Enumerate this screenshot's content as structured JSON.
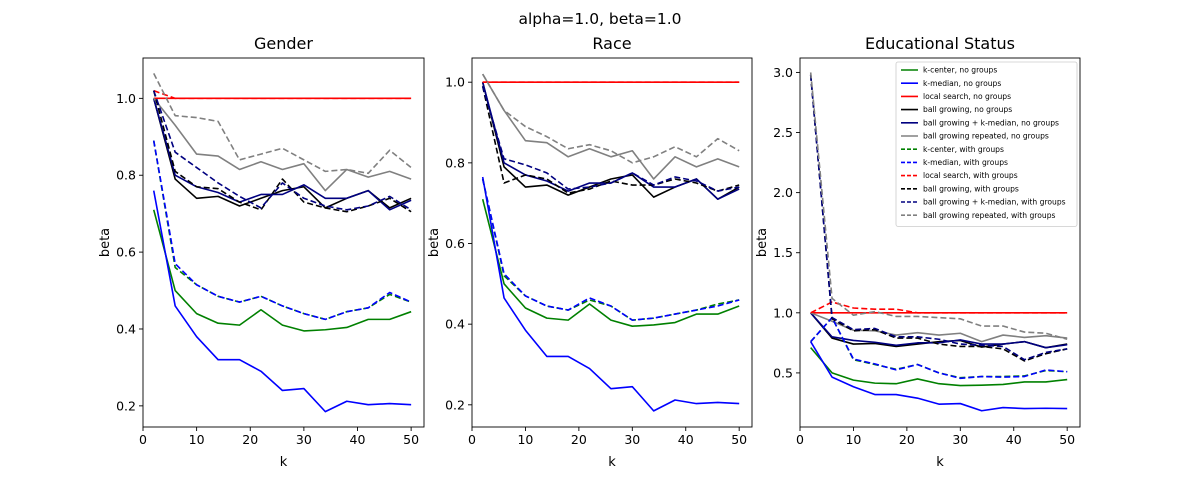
{
  "figure": {
    "suptitle": "alpha=1.0, beta=1.0"
  },
  "legend_entries": [
    "k-center, no groups",
    "k-median, no groups",
    "local search, no groups",
    "ball growing, no groups",
    "ball growing + k-median, no groups",
    "ball growing repeated, no groups",
    "k-center, with groups",
    "k-median, with groups",
    "local search, with groups",
    "ball growing, with groups",
    "ball growing + k-median, with groups",
    "ball growing repeated, with groups"
  ],
  "chart_data": [
    {
      "type": "line",
      "title": "Gender",
      "xlabel": "k",
      "ylabel": "beta",
      "xlim": [
        0,
        52.4
      ],
      "ylim": [
        0.145,
        1.105
      ],
      "xticks": [
        0,
        10,
        20,
        30,
        40,
        50
      ],
      "yticks": [
        0.2,
        0.4,
        0.6,
        0.8,
        1.0
      ],
      "ytick_labels": [
        "0.2",
        "0.4",
        "0.6",
        "0.8",
        "1.0"
      ],
      "x": [
        2,
        6,
        10,
        14,
        18,
        22,
        26,
        30,
        34,
        38,
        42,
        46,
        50
      ],
      "grid": false,
      "series": [
        {
          "name": "k-center, no groups",
          "color": "#008000",
          "dash": "solid",
          "values": [
            0.71,
            0.5,
            0.44,
            0.415,
            0.41,
            0.45,
            0.41,
            0.395,
            0.398,
            0.404,
            0.425,
            0.425,
            0.445
          ]
        },
        {
          "name": "k-median, no groups",
          "color": "#0000ff",
          "dash": "solid",
          "values": [
            0.76,
            0.46,
            0.38,
            0.32,
            0.32,
            0.29,
            0.24,
            0.245,
            0.185,
            0.212,
            0.203,
            0.206,
            0.203
          ]
        },
        {
          "name": "local search, no groups",
          "color": "#ff0000",
          "dash": "solid",
          "values": [
            1.0,
            1.0,
            1.0,
            1.0,
            1.0,
            1.0,
            1.0,
            1.0,
            1.0,
            1.0,
            1.0,
            1.0,
            1.0
          ]
        },
        {
          "name": "ball growing, no groups",
          "color": "#000000",
          "dash": "solid",
          "values": [
            1.0,
            0.79,
            0.74,
            0.745,
            0.72,
            0.74,
            0.76,
            0.77,
            0.715,
            0.74,
            0.76,
            0.715,
            0.74
          ]
        },
        {
          "name": "ball growing + k-median, no groups",
          "color": "#000080",
          "dash": "solid",
          "values": [
            1.0,
            0.8,
            0.77,
            0.755,
            0.73,
            0.75,
            0.75,
            0.775,
            0.74,
            0.74,
            0.76,
            0.71,
            0.735
          ]
        },
        {
          "name": "ball growing repeated, no groups",
          "color": "#808080",
          "dash": "solid",
          "values": [
            1.0,
            0.93,
            0.855,
            0.85,
            0.815,
            0.835,
            0.815,
            0.83,
            0.76,
            0.815,
            0.795,
            0.81,
            0.79
          ]
        },
        {
          "name": "k-center, with groups",
          "color": "#008000",
          "dash": "dashed",
          "values": [
            0.89,
            0.56,
            0.515,
            0.485,
            0.47,
            0.485,
            0.46,
            0.44,
            0.425,
            0.445,
            0.455,
            0.49,
            0.47
          ]
        },
        {
          "name": "k-median, with groups",
          "color": "#0000ff",
          "dash": "dashed",
          "values": [
            0.89,
            0.57,
            0.515,
            0.485,
            0.47,
            0.485,
            0.46,
            0.44,
            0.425,
            0.445,
            0.455,
            0.495,
            0.47
          ]
        },
        {
          "name": "local search, with groups",
          "color": "#ff0000",
          "dash": "dashed",
          "values": [
            1.02,
            1.0,
            1.0,
            1.0,
            1.0,
            1.0,
            1.0,
            1.0,
            1.0,
            1.0,
            1.0,
            1.0,
            1.0
          ]
        },
        {
          "name": "ball growing, with groups",
          "color": "#000000",
          "dash": "dashed",
          "values": [
            1.02,
            0.81,
            0.77,
            0.765,
            0.73,
            0.71,
            0.79,
            0.73,
            0.715,
            0.705,
            0.72,
            0.74,
            0.705
          ]
        },
        {
          "name": "ball growing + k-median, with groups",
          "color": "#000080",
          "dash": "dashed",
          "values": [
            1.02,
            0.86,
            0.82,
            0.78,
            0.745,
            0.715,
            0.78,
            0.74,
            0.72,
            0.71,
            0.72,
            0.745,
            0.71
          ]
        },
        {
          "name": "ball growing repeated, with groups",
          "color": "#808080",
          "dash": "dashed",
          "values": [
            1.065,
            0.955,
            0.95,
            0.94,
            0.84,
            0.855,
            0.87,
            0.84,
            0.81,
            0.815,
            0.805,
            0.865,
            0.82
          ]
        }
      ]
    },
    {
      "type": "line",
      "title": "Race",
      "xlabel": "k",
      "ylabel": "beta",
      "xlim": [
        0,
        52.4
      ],
      "ylim": [
        0.145,
        1.06
      ],
      "xticks": [
        0,
        10,
        20,
        30,
        40,
        50
      ],
      "yticks": [
        0.2,
        0.4,
        0.6,
        0.8,
        1.0
      ],
      "ytick_labels": [
        "0.2",
        "0.4",
        "0.6",
        "0.8",
        "1.0"
      ],
      "x": [
        2,
        6,
        10,
        14,
        18,
        22,
        26,
        30,
        34,
        38,
        42,
        46,
        50
      ],
      "grid": false,
      "series": [
        {
          "name": "k-center, no groups",
          "color": "#008000",
          "dash": "solid",
          "values": [
            0.71,
            0.5,
            0.44,
            0.415,
            0.41,
            0.45,
            0.41,
            0.395,
            0.398,
            0.404,
            0.425,
            0.425,
            0.445
          ]
        },
        {
          "name": "k-median, no groups",
          "color": "#0000ff",
          "dash": "solid",
          "values": [
            0.765,
            0.465,
            0.385,
            0.32,
            0.32,
            0.29,
            0.24,
            0.245,
            0.185,
            0.212,
            0.203,
            0.206,
            0.203
          ]
        },
        {
          "name": "local search, no groups",
          "color": "#ff0000",
          "dash": "solid",
          "values": [
            1.0,
            1.0,
            1.0,
            1.0,
            1.0,
            1.0,
            1.0,
            1.0,
            1.0,
            1.0,
            1.0,
            1.0,
            1.0
          ]
        },
        {
          "name": "ball growing, no groups",
          "color": "#000000",
          "dash": "solid",
          "values": [
            1.0,
            0.79,
            0.74,
            0.745,
            0.72,
            0.74,
            0.76,
            0.77,
            0.715,
            0.74,
            0.76,
            0.71,
            0.74
          ]
        },
        {
          "name": "ball growing + k-median, no groups",
          "color": "#000080",
          "dash": "solid",
          "values": [
            1.0,
            0.8,
            0.77,
            0.755,
            0.73,
            0.75,
            0.75,
            0.775,
            0.74,
            0.74,
            0.76,
            0.71,
            0.735
          ]
        },
        {
          "name": "ball growing repeated, no groups",
          "color": "#808080",
          "dash": "solid",
          "values": [
            1.02,
            0.93,
            0.855,
            0.85,
            0.815,
            0.835,
            0.815,
            0.83,
            0.76,
            0.815,
            0.79,
            0.81,
            0.79
          ]
        },
        {
          "name": "k-center, with groups",
          "color": "#008000",
          "dash": "dashed",
          "values": [
            0.76,
            0.52,
            0.47,
            0.445,
            0.435,
            0.46,
            0.445,
            0.41,
            0.415,
            0.425,
            0.435,
            0.45,
            0.46
          ]
        },
        {
          "name": "k-median, with groups",
          "color": "#0000ff",
          "dash": "dashed",
          "values": [
            0.76,
            0.525,
            0.47,
            0.445,
            0.435,
            0.465,
            0.445,
            0.41,
            0.415,
            0.425,
            0.435,
            0.445,
            0.46
          ]
        },
        {
          "name": "local search, with groups",
          "color": "#ff0000",
          "dash": "dashed",
          "values": [
            1.0,
            1.0,
            1.0,
            1.0,
            1.0,
            1.0,
            1.0,
            1.0,
            1.0,
            1.0,
            1.0,
            1.0,
            1.0
          ]
        },
        {
          "name": "ball growing, with groups",
          "color": "#000000",
          "dash": "dashed",
          "values": [
            0.99,
            0.75,
            0.77,
            0.76,
            0.725,
            0.735,
            0.755,
            0.745,
            0.745,
            0.76,
            0.75,
            0.73,
            0.745
          ]
        },
        {
          "name": "ball growing + k-median, with groups",
          "color": "#000080",
          "dash": "dashed",
          "values": [
            0.99,
            0.81,
            0.795,
            0.775,
            0.735,
            0.74,
            0.75,
            0.775,
            0.745,
            0.765,
            0.755,
            0.73,
            0.74
          ]
        },
        {
          "name": "ball growing repeated, with groups",
          "color": "#808080",
          "dash": "dashed",
          "values": [
            1.02,
            0.93,
            0.89,
            0.865,
            0.835,
            0.845,
            0.83,
            0.8,
            0.815,
            0.84,
            0.815,
            0.86,
            0.83
          ]
        }
      ]
    },
    {
      "type": "line",
      "title": "Educational Status",
      "xlabel": "k",
      "ylabel": "beta",
      "xlim": [
        0,
        52.4
      ],
      "ylim": [
        0.05,
        3.12
      ],
      "xticks": [
        0,
        10,
        20,
        30,
        40,
        50
      ],
      "yticks": [
        0.5,
        1.0,
        1.5,
        2.0,
        2.5,
        3.0
      ],
      "ytick_labels": [
        "0.5",
        "1.0",
        "1.5",
        "2.0",
        "2.5",
        "3.0"
      ],
      "x": [
        2,
        6,
        10,
        14,
        18,
        22,
        26,
        30,
        34,
        38,
        42,
        46,
        50
      ],
      "grid": false,
      "legend_position": "upper right",
      "series": [
        {
          "name": "k-center, no groups",
          "color": "#008000",
          "dash": "solid",
          "values": [
            0.71,
            0.5,
            0.44,
            0.415,
            0.41,
            0.45,
            0.41,
            0.395,
            0.398,
            0.404,
            0.425,
            0.425,
            0.445
          ]
        },
        {
          "name": "k-median, no groups",
          "color": "#0000ff",
          "dash": "solid",
          "values": [
            0.76,
            0.465,
            0.385,
            0.32,
            0.32,
            0.29,
            0.24,
            0.245,
            0.185,
            0.212,
            0.203,
            0.206,
            0.203
          ]
        },
        {
          "name": "local search, no groups",
          "color": "#ff0000",
          "dash": "solid",
          "values": [
            1.0,
            1.0,
            1.0,
            1.0,
            1.0,
            1.0,
            1.0,
            1.0,
            1.0,
            1.0,
            1.0,
            1.0,
            1.0
          ]
        },
        {
          "name": "ball growing, no groups",
          "color": "#000000",
          "dash": "solid",
          "values": [
            1.0,
            0.79,
            0.74,
            0.745,
            0.72,
            0.74,
            0.76,
            0.77,
            0.715,
            0.74,
            0.76,
            0.71,
            0.74
          ]
        },
        {
          "name": "ball growing + k-median, no groups",
          "color": "#000080",
          "dash": "solid",
          "values": [
            1.0,
            0.8,
            0.77,
            0.755,
            0.73,
            0.75,
            0.75,
            0.775,
            0.74,
            0.74,
            0.76,
            0.71,
            0.735
          ]
        },
        {
          "name": "ball growing repeated, no groups",
          "color": "#808080",
          "dash": "solid",
          "values": [
            1.0,
            0.93,
            0.855,
            0.85,
            0.815,
            0.835,
            0.815,
            0.83,
            0.76,
            0.815,
            0.795,
            0.81,
            0.79
          ]
        },
        {
          "name": "k-center, with groups",
          "color": "#008000",
          "dash": "dashed",
          "values": [
            0.76,
            0.96,
            0.61,
            0.57,
            0.53,
            0.57,
            0.5,
            0.46,
            0.47,
            0.47,
            0.475,
            0.52,
            0.51
          ]
        },
        {
          "name": "k-median, with groups",
          "color": "#0000ff",
          "dash": "dashed",
          "values": [
            0.76,
            0.96,
            0.615,
            0.575,
            0.525,
            0.57,
            0.5,
            0.455,
            0.47,
            0.465,
            0.47,
            0.525,
            0.51
          ]
        },
        {
          "name": "local search, with groups",
          "color": "#ff0000",
          "dash": "dashed",
          "values": [
            1.0,
            1.09,
            1.04,
            1.03,
            1.03,
            1.0,
            1.0,
            1.0,
            1.0,
            1.0,
            1.0,
            1.0,
            1.0
          ]
        },
        {
          "name": "ball growing, with groups",
          "color": "#000000",
          "dash": "dashed",
          "values": [
            2.98,
            0.95,
            0.85,
            0.86,
            0.79,
            0.79,
            0.74,
            0.72,
            0.72,
            0.7,
            0.6,
            0.66,
            0.7
          ]
        },
        {
          "name": "ball growing + k-median, with groups",
          "color": "#000080",
          "dash": "dashed",
          "values": [
            2.98,
            0.96,
            0.86,
            0.87,
            0.8,
            0.8,
            0.78,
            0.74,
            0.73,
            0.72,
            0.61,
            0.67,
            0.7
          ]
        },
        {
          "name": "ball growing repeated, with groups",
          "color": "#808080",
          "dash": "dashed",
          "values": [
            3.0,
            1.12,
            0.98,
            1.01,
            0.97,
            0.97,
            0.96,
            0.95,
            0.89,
            0.89,
            0.84,
            0.83,
            0.78
          ]
        }
      ]
    }
  ]
}
